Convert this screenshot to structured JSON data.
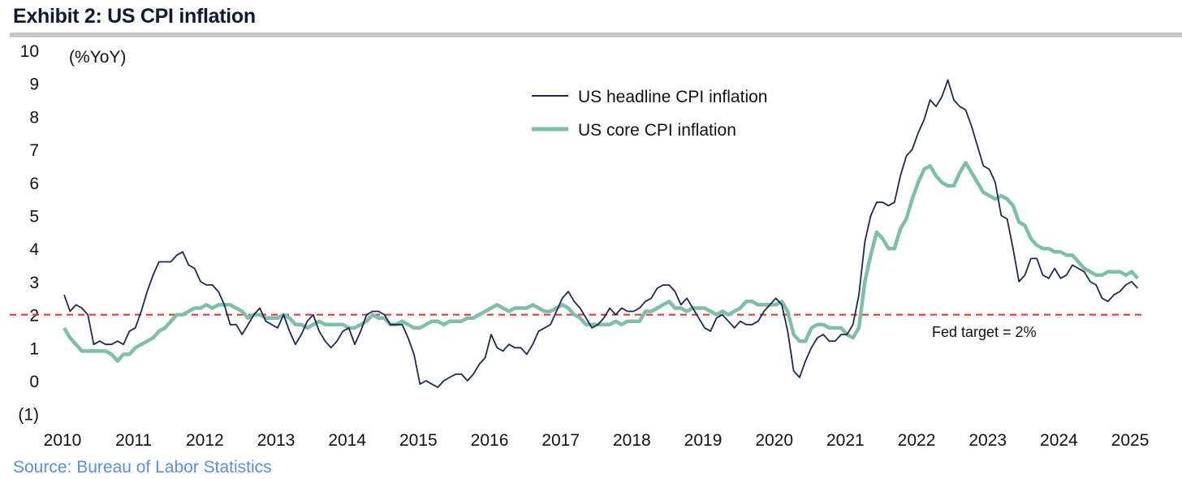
{
  "title": "Exhibit 2: US CPI inflation",
  "source": "Source: Bureau of Labor Statistics",
  "chart_data": {
    "type": "line",
    "title": "Exhibit 2: US CPI inflation",
    "ylabel": "(%YoY)",
    "xlabel": "",
    "ylim": [
      -1,
      10
    ],
    "yticks": [
      -1,
      0,
      1,
      2,
      3,
      4,
      5,
      6,
      7,
      8,
      9,
      10
    ],
    "ytick_labels": [
      "(1)",
      "0",
      "1",
      "2",
      "3",
      "4",
      "5",
      "6",
      "7",
      "8",
      "9",
      "10"
    ],
    "xticks": [
      "2010",
      "2011",
      "2012",
      "2013",
      "2014",
      "2015",
      "2016",
      "2017",
      "2018",
      "2019",
      "2020",
      "2021",
      "2022",
      "2023",
      "2024",
      "2025"
    ],
    "x_start": "2010-01",
    "frequency": "monthly",
    "legend_position": "top-center",
    "grid": false,
    "series": [
      {
        "name": "US headline CPI inflation",
        "color": "#1b2a4e",
        "values": [
          2.6,
          2.1,
          2.3,
          2.2,
          2.0,
          1.1,
          1.2,
          1.1,
          1.1,
          1.2,
          1.1,
          1.5,
          1.6,
          2.1,
          2.7,
          3.2,
          3.6,
          3.6,
          3.6,
          3.8,
          3.9,
          3.5,
          3.4,
          3.0,
          2.9,
          2.9,
          2.7,
          2.3,
          1.7,
          1.7,
          1.4,
          1.7,
          2.0,
          2.2,
          1.8,
          1.7,
          1.6,
          2.0,
          1.5,
          1.1,
          1.4,
          1.8,
          2.0,
          1.5,
          1.2,
          1.0,
          1.2,
          1.5,
          1.6,
          1.1,
          1.5,
          2.0,
          2.1,
          2.1,
          2.0,
          1.7,
          1.7,
          1.7,
          1.3,
          0.8,
          -0.1,
          0.0,
          -0.1,
          -0.2,
          0.0,
          0.1,
          0.2,
          0.2,
          0.0,
          0.2,
          0.5,
          0.7,
          1.4,
          1.0,
          0.9,
          1.1,
          1.0,
          1.0,
          0.8,
          1.1,
          1.5,
          1.6,
          1.7,
          2.1,
          2.5,
          2.7,
          2.4,
          2.2,
          1.9,
          1.6,
          1.7,
          1.9,
          2.2,
          2.0,
          2.2,
          2.1,
          2.1,
          2.2,
          2.4,
          2.5,
          2.8,
          2.9,
          2.9,
          2.7,
          2.3,
          2.5,
          2.2,
          1.9,
          1.6,
          1.5,
          1.9,
          2.0,
          1.8,
          1.6,
          1.8,
          1.7,
          1.7,
          1.8,
          2.1,
          2.3,
          2.5,
          2.3,
          1.5,
          0.3,
          0.1,
          0.6,
          1.0,
          1.3,
          1.4,
          1.2,
          1.2,
          1.4,
          1.4,
          1.7,
          2.6,
          4.2,
          5.0,
          5.4,
          5.4,
          5.3,
          5.4,
          6.2,
          6.8,
          7.0,
          7.5,
          7.9,
          8.5,
          8.3,
          8.6,
          9.1,
          8.5,
          8.3,
          8.2,
          7.7,
          7.1,
          6.5,
          6.4,
          6.0,
          5.0,
          4.9,
          4.0,
          3.0,
          3.2,
          3.7,
          3.7,
          3.2,
          3.1,
          3.4,
          3.1,
          3.2,
          3.5,
          3.4,
          3.3,
          3.0,
          2.9,
          2.5,
          2.4,
          2.6,
          2.7,
          2.9,
          3.0,
          2.8
        ]
      },
      {
        "name": "US core CPI inflation",
        "color": "#7fbfaa",
        "values": [
          1.6,
          1.3,
          1.1,
          0.9,
          0.9,
          0.9,
          0.9,
          0.9,
          0.8,
          0.6,
          0.8,
          0.8,
          1.0,
          1.1,
          1.2,
          1.3,
          1.5,
          1.6,
          1.8,
          2.0,
          2.0,
          2.1,
          2.2,
          2.2,
          2.3,
          2.2,
          2.3,
          2.3,
          2.3,
          2.2,
          2.1,
          1.9,
          2.0,
          2.0,
          1.9,
          1.9,
          1.9,
          2.0,
          1.9,
          1.7,
          1.7,
          1.6,
          1.7,
          1.8,
          1.7,
          1.7,
          1.7,
          1.7,
          1.6,
          1.6,
          1.7,
          1.8,
          2.0,
          1.9,
          1.9,
          1.7,
          1.7,
          1.8,
          1.7,
          1.6,
          1.6,
          1.7,
          1.8,
          1.8,
          1.7,
          1.8,
          1.8,
          1.8,
          1.9,
          1.9,
          2.0,
          2.1,
          2.2,
          2.3,
          2.2,
          2.1,
          2.2,
          2.2,
          2.2,
          2.3,
          2.2,
          2.1,
          2.1,
          2.2,
          2.3,
          2.2,
          2.0,
          1.9,
          1.7,
          1.7,
          1.7,
          1.7,
          1.7,
          1.8,
          1.7,
          1.8,
          1.8,
          1.8,
          2.1,
          2.1,
          2.2,
          2.3,
          2.4,
          2.2,
          2.2,
          2.1,
          2.2,
          2.2,
          2.2,
          2.1,
          2.0,
          2.1,
          2.0,
          2.1,
          2.2,
          2.4,
          2.4,
          2.3,
          2.3,
          2.3,
          2.3,
          2.4,
          2.1,
          1.4,
          1.2,
          1.2,
          1.6,
          1.7,
          1.7,
          1.6,
          1.6,
          1.6,
          1.4,
          1.3,
          1.6,
          3.0,
          3.8,
          4.5,
          4.3,
          4.0,
          4.0,
          4.6,
          4.9,
          5.5,
          6.0,
          6.4,
          6.5,
          6.2,
          6.0,
          5.9,
          5.9,
          6.3,
          6.6,
          6.3,
          6.0,
          5.7,
          5.6,
          5.5,
          5.6,
          5.5,
          5.3,
          4.8,
          4.7,
          4.3,
          4.1,
          4.0,
          4.0,
          3.9,
          3.9,
          3.8,
          3.8,
          3.6,
          3.4,
          3.3,
          3.2,
          3.2,
          3.3,
          3.3,
          3.3,
          3.2,
          3.3,
          3.1
        ]
      }
    ],
    "reference_line": {
      "value": 2,
      "label": "Fed target = 2%",
      "color": "#e03030"
    }
  }
}
